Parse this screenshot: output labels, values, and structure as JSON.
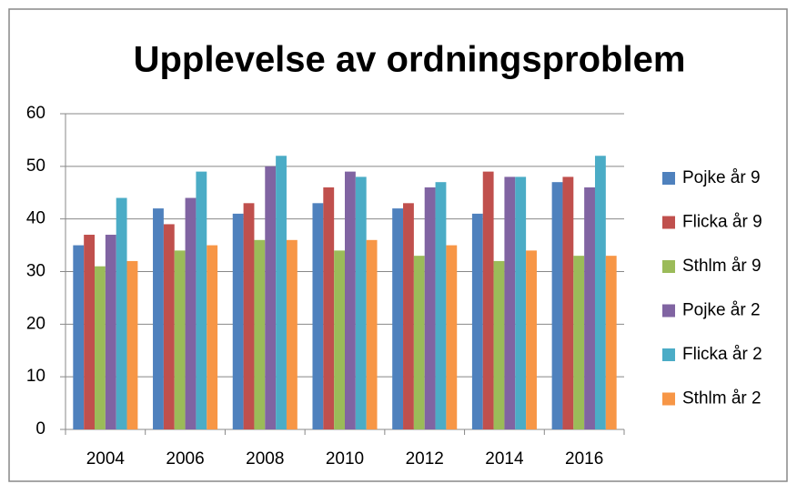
{
  "chart_data": {
    "type": "bar",
    "title": "Upplevelse av ordningsproblem",
    "categories": [
      "2004",
      "2006",
      "2008",
      "2010",
      "2012",
      "2014",
      "2016"
    ],
    "series": [
      {
        "name": "Pojke år 9",
        "color": "#4f81bd",
        "values": [
          35,
          42,
          41,
          43,
          42,
          41,
          47
        ]
      },
      {
        "name": "Flicka år 9",
        "color": "#c0504d",
        "values": [
          37,
          39,
          43,
          46,
          43,
          49,
          48
        ]
      },
      {
        "name": "Sthlm år 9",
        "color": "#9bbb59",
        "values": [
          31,
          34,
          36,
          34,
          33,
          32,
          33
        ]
      },
      {
        "name": "Pojke år 2",
        "color": "#8064a2",
        "values": [
          37,
          44,
          50,
          49,
          46,
          48,
          46
        ]
      },
      {
        "name": "Flicka år 2",
        "color": "#4bacc6",
        "values": [
          44,
          49,
          52,
          48,
          47,
          48,
          52
        ]
      },
      {
        "name": "Sthlm år 2",
        "color": "#f79646",
        "values": [
          32,
          35,
          36,
          36,
          35,
          34,
          33
        ]
      }
    ],
    "ylim": [
      0,
      60
    ],
    "yticks": [
      0,
      10,
      20,
      30,
      40,
      50,
      60
    ],
    "grid": true,
    "legend": "right"
  }
}
